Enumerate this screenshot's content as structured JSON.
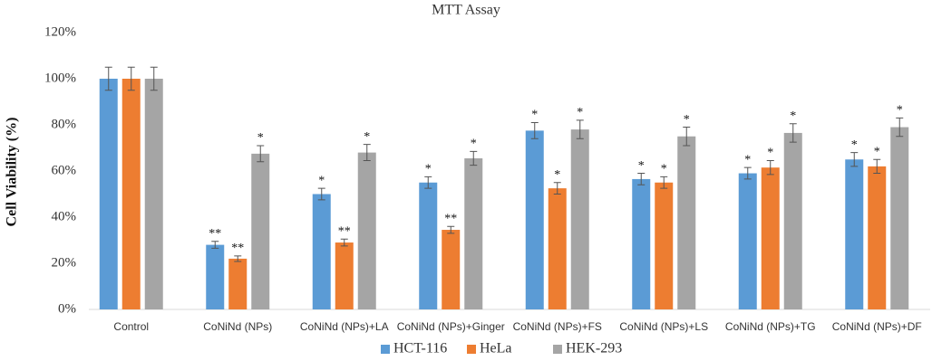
{
  "chart_data": {
    "type": "bar",
    "title": "MTT Assay",
    "y_label": "Cell Viability (%)",
    "categories": [
      "Control",
      "CoNiNd (NPs)",
      "CoNiNd (NPs)+LA",
      "CoNiNd (NPs)+Ginger",
      "CoNiNd (NPs)+FS",
      "CoNiNd (NPs)+LS",
      "CoNiNd (NPs)+TG",
      "CoNiNd (NPs)+DF"
    ],
    "series": [
      {
        "name": "HCT-116",
        "color": "#5b9bd5",
        "values": [
          100,
          28,
          50,
          55,
          77.5,
          56.5,
          59,
          65
        ],
        "errors": [
          5,
          1.5,
          2.5,
          2.5,
          3.5,
          2.5,
          2.5,
          3
        ],
        "annotations": [
          null,
          "**",
          "*",
          "*",
          "*",
          "*",
          "*",
          "*"
        ]
      },
      {
        "name": "HeLa",
        "color": "#ed7d31",
        "values": [
          100,
          22,
          29,
          34.5,
          52.5,
          55,
          61.5,
          62
        ],
        "errors": [
          5,
          1.2,
          1.5,
          1.5,
          2.5,
          2.5,
          3,
          3
        ],
        "annotations": [
          null,
          "**",
          "**",
          "**",
          "*",
          "*",
          "*",
          "*"
        ]
      },
      {
        "name": "HEK-293",
        "color": "#a5a5a5",
        "values": [
          100,
          67.5,
          68,
          65.5,
          78,
          75,
          76.5,
          79
        ],
        "errors": [
          5,
          3.5,
          3.5,
          3,
          4,
          4,
          4,
          4
        ],
        "annotations": [
          null,
          "*",
          "*",
          "*",
          "*",
          "*",
          "*",
          "*"
        ]
      }
    ],
    "ylim": [
      0,
      120
    ],
    "yticks": [
      {
        "value": 0,
        "label": "0%"
      },
      {
        "value": 20,
        "label": "20%"
      },
      {
        "value": 40,
        "label": "40%"
      },
      {
        "value": 60,
        "label": "60%"
      },
      {
        "value": 80,
        "label": "80%"
      },
      {
        "value": 100,
        "label": "100%"
      },
      {
        "value": 120,
        "label": "120%"
      }
    ],
    "legend": "bottom"
  }
}
